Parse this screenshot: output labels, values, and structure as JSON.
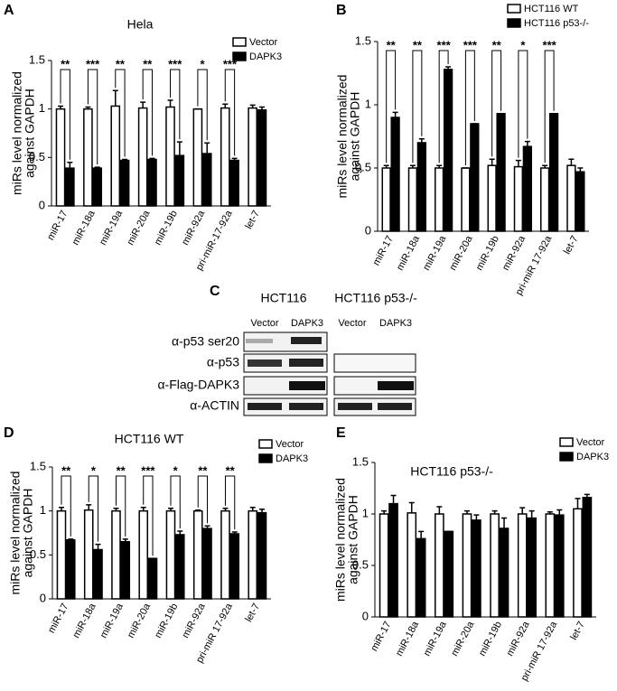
{
  "chart_data": [
    {
      "type": "bar",
      "panel": "A",
      "title": "Hela",
      "ylabel": [
        "miRs level normalized",
        "against GAPDH"
      ],
      "categories": [
        "miR-17",
        "miR-18a",
        "miR-19a",
        "miR-20a",
        "miR-19b",
        "miR-92a",
        "pri-miR-17-92a",
        "let-7"
      ],
      "series": [
        {
          "name": "Vector",
          "color": "#ffffff",
          "values": [
            1,
            1,
            1.03,
            1.01,
            1.02,
            1,
            1.01,
            1.01
          ],
          "errors": [
            0.03,
            0.02,
            0.16,
            0.06,
            0.07,
            0,
            0.04,
            0.03
          ]
        },
        {
          "name": "DAPK3",
          "color": "#000000",
          "values": [
            0.39,
            0.39,
            0.47,
            0.48,
            0.52,
            0.54,
            0.47,
            0.99
          ],
          "errors": [
            0.06,
            0.01,
            0.01,
            0.01,
            0.14,
            0.11,
            0.02,
            0.03
          ]
        }
      ],
      "significance": [
        "**",
        "***",
        "**",
        "**",
        "***",
        "*",
        "***",
        null
      ],
      "ylim": [
        0,
        1.5
      ],
      "yticks": [
        0,
        0.5,
        1,
        1.5
      ]
    },
    {
      "type": "bar",
      "panel": "B",
      "ylabel": [
        "miRs level normalized",
        "against GAPDH"
      ],
      "categories": [
        "miR-17",
        "miR-18a",
        "miR-19a",
        "miR-20a",
        "miR-19b",
        "miR-92a",
        "pri-miR 17-92a",
        "let-7"
      ],
      "series": [
        {
          "name": "HCT116 WT",
          "color": "#ffffff",
          "values": [
            0.5,
            0.5,
            0.5,
            0.5,
            0.52,
            0.51,
            0.5,
            0.52
          ],
          "errors": [
            0.02,
            0.02,
            0.02,
            0,
            0.05,
            0.05,
            0.02,
            0.05
          ]
        },
        {
          "name": "HCT116 p53-/-",
          "color": "#000000",
          "values": [
            0.9,
            0.7,
            1.28,
            0.85,
            0.93,
            0.67,
            0.93,
            0.47
          ],
          "errors": [
            0.04,
            0.03,
            0.02,
            0,
            0,
            0.04,
            0,
            0.03
          ]
        }
      ],
      "significance": [
        "**",
        "**",
        "***",
        "***",
        "**",
        "*",
        "***",
        null
      ],
      "ylim": [
        0,
        1.5
      ],
      "yticks": [
        0,
        0.5,
        1,
        1.5
      ]
    },
    {
      "type": "bar",
      "panel": "D",
      "title": "HCT116 WT",
      "ylabel": [
        "miRs level normalized",
        "against GAPDH"
      ],
      "categories": [
        "miR-17",
        "miR-18a",
        "miR-19a",
        "miR-20a",
        "miR-19b",
        "miR-92a",
        "pri-miR 17-92a",
        "let-7"
      ],
      "series": [
        {
          "name": "Vector",
          "color": "#ffffff",
          "values": [
            1,
            1.01,
            1,
            1,
            1,
            1,
            1,
            1
          ],
          "errors": [
            0.04,
            0.06,
            0.03,
            0.04,
            0.03,
            0.01,
            0.03,
            0.04
          ]
        },
        {
          "name": "DAPK3",
          "color": "#000000",
          "values": [
            0.67,
            0.56,
            0.65,
            0.46,
            0.73,
            0.8,
            0.74,
            0.98
          ],
          "errors": [
            0.01,
            0.06,
            0.03,
            0,
            0.04,
            0.03,
            0.02,
            0.04
          ]
        }
      ],
      "significance": [
        "**",
        "*",
        "**",
        "***",
        "*",
        "**",
        "**",
        null
      ],
      "ylim": [
        0,
        1.5
      ],
      "yticks": [
        0,
        0.5,
        1,
        1.5
      ]
    },
    {
      "type": "bar",
      "panel": "E",
      "title": "HCT116 p53-/-",
      "ylabel": [
        "miRs level normalized",
        "against GAPDH"
      ],
      "categories": [
        "miR-17",
        "miR-18a",
        "miR-19a",
        "miR-20a",
        "miR-19b",
        "miR-92a",
        "pri-miR 17-92a",
        "let-7"
      ],
      "series": [
        {
          "name": "Vector",
          "color": "#ffffff",
          "values": [
            1,
            1.01,
            1,
            1,
            1,
            1,
            1,
            1.05
          ],
          "errors": [
            0.03,
            0.1,
            0.07,
            0.03,
            0.03,
            0.06,
            0.02,
            0.1
          ]
        },
        {
          "name": "DAPK3",
          "color": "#000000",
          "values": [
            1.1,
            0.76,
            0.83,
            0.94,
            0.86,
            0.96,
            0.99,
            1.16
          ],
          "errors": [
            0.08,
            0.07,
            0,
            0.05,
            0.1,
            0.07,
            0.05,
            0.03
          ]
        }
      ],
      "ylim": [
        0,
        1.5
      ],
      "yticks": [
        0,
        0.5,
        1,
        1.5
      ]
    }
  ],
  "blot": {
    "panel": "C",
    "groups": [
      "HCT116",
      "HCT116 p53-/-"
    ],
    "lanes": [
      "Vector",
      "DAPK3",
      "Vector",
      "DAPK3"
    ],
    "rows": [
      "α-p53 ser20",
      "α-p53",
      "α-Flag-DAPK3",
      "α-ACTIN"
    ]
  }
}
